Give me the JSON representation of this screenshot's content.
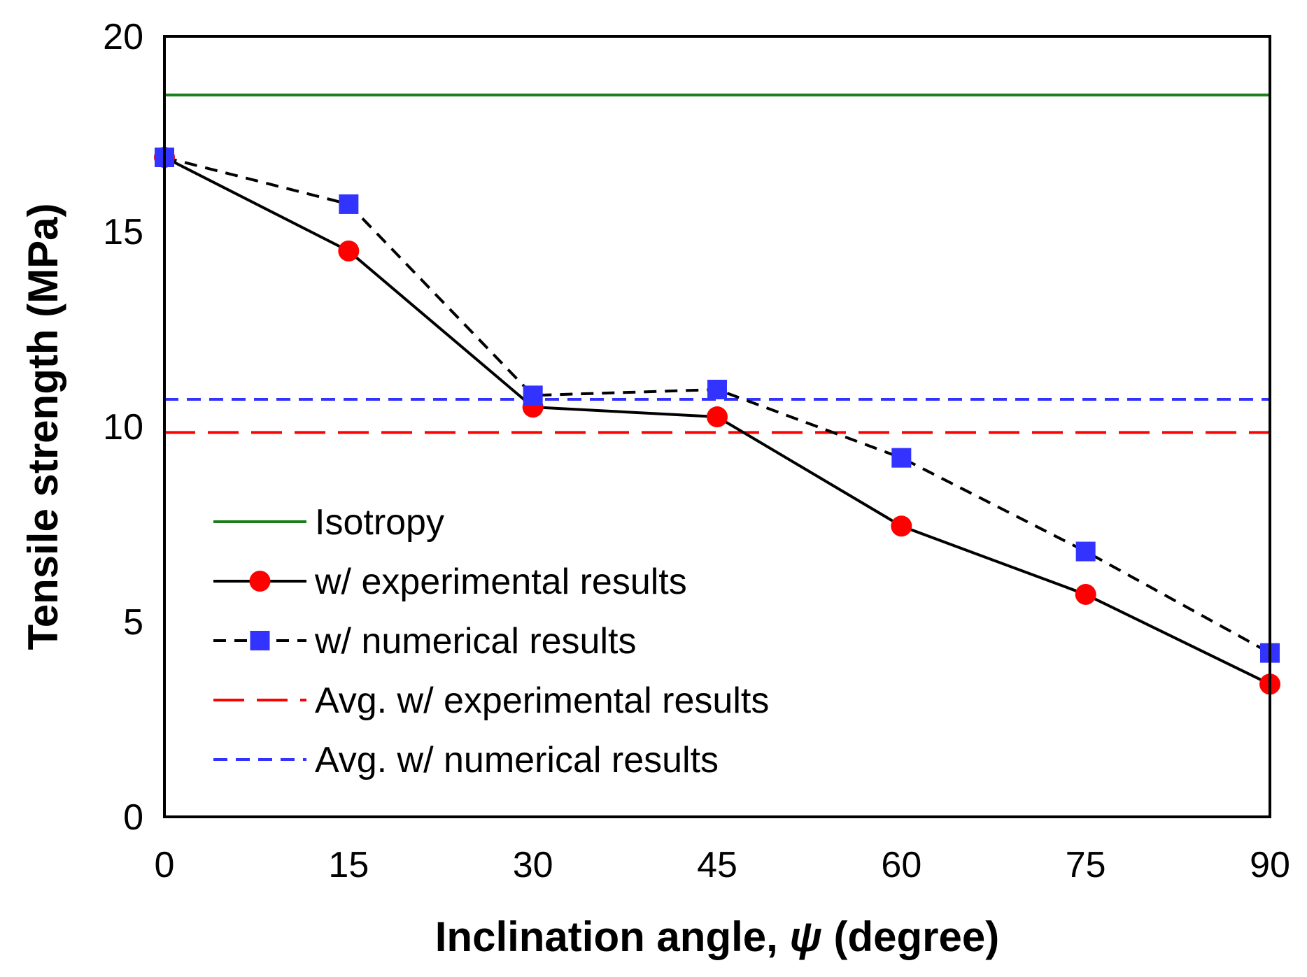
{
  "chart_data": {
    "type": "line",
    "xlabel": "Inclination angle, ψ (degree)",
    "xlabel_parts": {
      "prefix": "Inclination angle, ",
      "symbol": "ψ",
      "suffix": " (degree)"
    },
    "ylabel": "Tensile strength (MPa)",
    "xlim": [
      0,
      90
    ],
    "ylim": [
      0,
      20
    ],
    "xticks": [
      0,
      15,
      30,
      45,
      60,
      75,
      90
    ],
    "yticks": [
      0,
      5,
      10,
      15,
      20
    ],
    "grid": false,
    "legend_position": "left",
    "x": [
      0,
      15,
      30,
      45,
      60,
      75,
      90
    ],
    "series": [
      {
        "name": "Isotropy",
        "kind": "hline",
        "value": 18.5,
        "color": "#1a7f1a",
        "dash": "solid",
        "marker": "none"
      },
      {
        "name": "w/ experimental results",
        "kind": "line",
        "values": [
          16.9,
          14.5,
          10.5,
          10.25,
          7.45,
          5.7,
          3.4
        ],
        "color": "#000000",
        "dash": "solid",
        "marker": "circle",
        "marker_color": "#ff0000"
      },
      {
        "name": "w/ numerical results",
        "kind": "line",
        "values": [
          16.9,
          15.7,
          10.8,
          10.95,
          9.2,
          6.8,
          4.2
        ],
        "color": "#000000",
        "dash": "dashed",
        "marker": "square",
        "marker_color": "#3333ff"
      },
      {
        "name": "Avg. w/ experimental results",
        "kind": "hline",
        "value": 9.85,
        "color": "#ff0000",
        "dash": "long-dash",
        "marker": "none"
      },
      {
        "name": "Avg. w/ numerical results",
        "kind": "hline",
        "value": 10.7,
        "color": "#3333ff",
        "dash": "short-dash",
        "marker": "none"
      }
    ]
  }
}
